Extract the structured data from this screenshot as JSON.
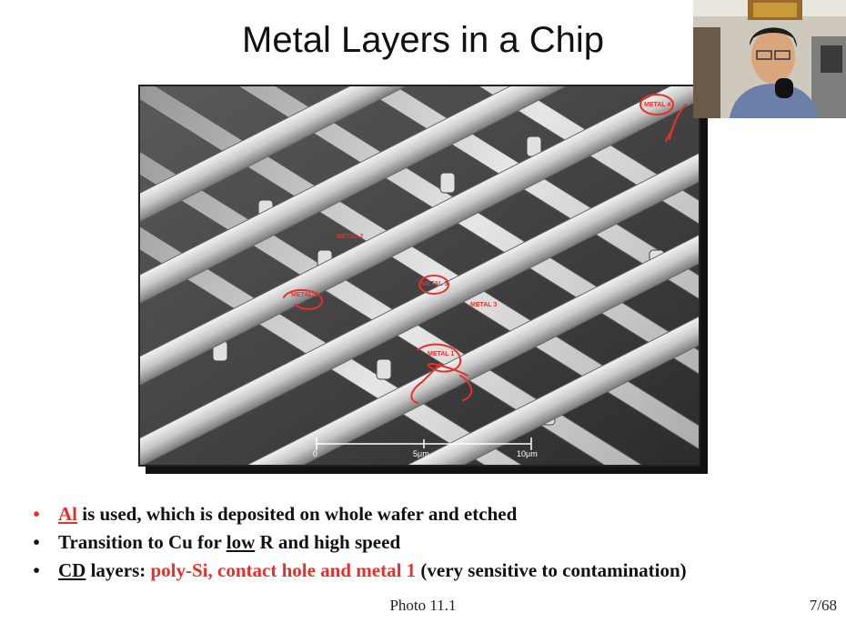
{
  "slide": {
    "title": "Metal Layers in a Chip",
    "caption": "Photo 11.1",
    "page": "7/68"
  },
  "photo": {
    "labels": {
      "metal4": "METAL 4",
      "metal2_top": "METAL 2",
      "metal2_left": "METAL 2",
      "metal3_center": "METAL 3",
      "metal3_right": "METAL 3",
      "metal1": "METAL 1"
    },
    "scale": {
      "zero": "0",
      "mid": "5μm",
      "end": "10μm"
    },
    "annotation_color": "#e8302a"
  },
  "bullets": [
    {
      "dot": "•",
      "al": "Al",
      "rest": " is used, which is deposited on whole wafer and etched"
    },
    {
      "dot": "•",
      "pre": "Transition to Cu for ",
      "low": "low",
      "post": " R and high speed"
    },
    {
      "dot": "•",
      "cd": "CD",
      "mid": " layers: ",
      "red": "poly-Si, contact hole and metal 1",
      "post": " (very sensitive to contamination)"
    }
  ]
}
